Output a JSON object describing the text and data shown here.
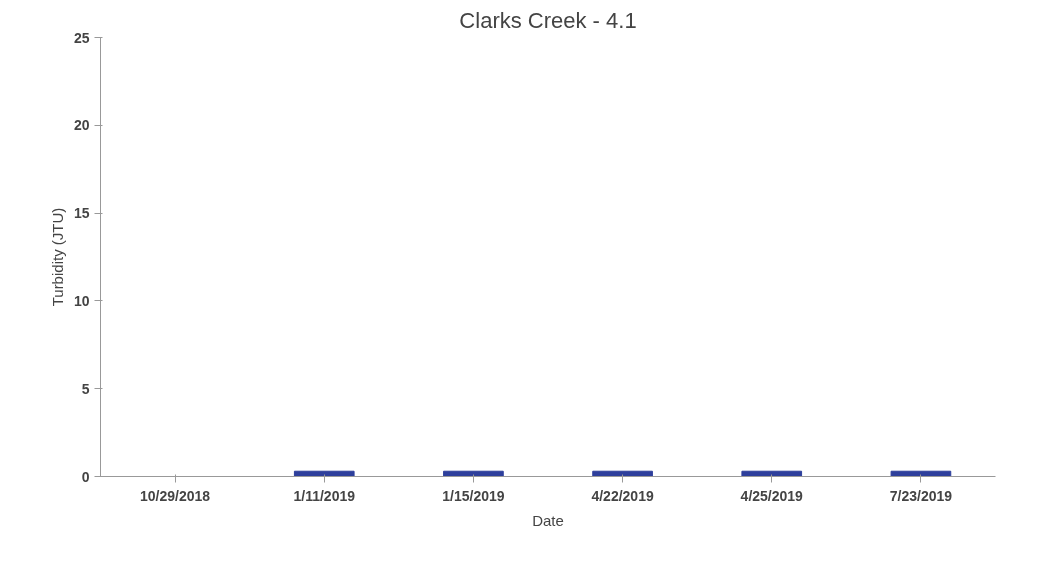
{
  "chart_data": {
    "type": "bar",
    "title": "Clarks Creek - 4.1",
    "xlabel": "Date",
    "ylabel": "Turbidity (JTU)",
    "categories": [
      "10/29/2018",
      "1/11/2019",
      "1/15/2019",
      "4/22/2019",
      "4/25/2019",
      "7/23/2019"
    ],
    "values": [
      null,
      0.3,
      0.3,
      0.3,
      0.3,
      0.3
    ],
    "color": "#2e3f9c",
    "ylim": [
      0,
      25
    ],
    "yticks": [
      0,
      5,
      10,
      15,
      20,
      25
    ],
    "grid": false
  }
}
